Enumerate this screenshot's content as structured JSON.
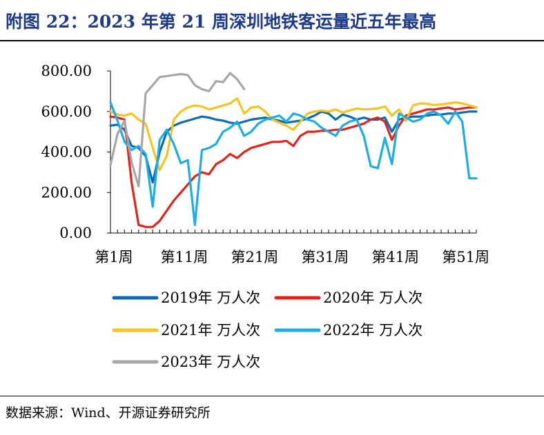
{
  "title": "附图 22：2023 年第 21 周深圳地铁客运量近五年最高",
  "source": "数据来源：Wind、开源证券研究所",
  "chart_data": {
    "type": "line",
    "title": "附图 22：2023 年第 21 周深圳地铁客运量近五年最高",
    "xlabel": "",
    "ylabel": "",
    "ylim": [
      0,
      800
    ],
    "yticks": [
      "0.00",
      "200.00",
      "400.00",
      "600.00",
      "800.00"
    ],
    "xlim": [
      1,
      53
    ],
    "xticks": [
      {
        "week": 1,
        "label": "第1周"
      },
      {
        "week": 11,
        "label": "第11周"
      },
      {
        "week": 21,
        "label": "第21周"
      },
      {
        "week": 31,
        "label": "第31周"
      },
      {
        "week": 41,
        "label": "第41周"
      },
      {
        "week": 51,
        "label": "第51周"
      }
    ],
    "grid": false,
    "legend_position": "bottom",
    "x": [
      1,
      2,
      3,
      4,
      5,
      6,
      7,
      8,
      9,
      10,
      11,
      12,
      13,
      14,
      15,
      16,
      17,
      18,
      19,
      20,
      21,
      22,
      23,
      24,
      25,
      26,
      27,
      28,
      29,
      30,
      31,
      32,
      33,
      34,
      35,
      36,
      37,
      38,
      39,
      40,
      41,
      42,
      43,
      44,
      45,
      46,
      47,
      48,
      49,
      50,
      51,
      52,
      53
    ],
    "series": [
      {
        "name": "2019年 万人次",
        "color": "#0a6bb5",
        "values": [
          530,
          535,
          510,
          430,
          420,
          380,
          250,
          400,
          500,
          530,
          545,
          555,
          565,
          575,
          570,
          560,
          555,
          545,
          540,
          550,
          560,
          565,
          570,
          560,
          555,
          545,
          550,
          555,
          565,
          580,
          600,
          590,
          560,
          585,
          575,
          560,
          570,
          560,
          560,
          570,
          500,
          560,
          570,
          575,
          575,
          580,
          585,
          585,
          590,
          590,
          595,
          600,
          600
        ]
      },
      {
        "name": "2020年 万人次",
        "color": "#e8201a",
        "values": [
          575,
          570,
          560,
          250,
          40,
          30,
          30,
          60,
          110,
          160,
          200,
          240,
          280,
          300,
          290,
          340,
          360,
          390,
          370,
          400,
          420,
          430,
          440,
          450,
          450,
          455,
          430,
          480,
          500,
          500,
          505,
          505,
          510,
          510,
          520,
          530,
          540,
          560,
          570,
          550,
          460,
          530,
          580,
          590,
          600,
          610,
          610,
          615,
          620,
          610,
          615,
          620,
          620
        ]
      },
      {
        "name": "2021年 万人次",
        "color": "#f7c31c",
        "values": [
          600,
          585,
          580,
          590,
          560,
          540,
          420,
          310,
          380,
          560,
          600,
          620,
          630,
          625,
          610,
          620,
          630,
          640,
          665,
          590,
          620,
          625,
          600,
          560,
          545,
          530,
          510,
          550,
          590,
          600,
          605,
          600,
          610,
          595,
          605,
          615,
          610,
          612,
          615,
          625,
          580,
          610,
          555,
          630,
          640,
          638,
          632,
          635,
          640,
          645,
          640,
          630,
          620
        ]
      },
      {
        "name": "2022年 万人次",
        "color": "#1aaee8",
        "values": [
          645,
          555,
          450,
          410,
          430,
          390,
          130,
          460,
          510,
          440,
          345,
          360,
          40,
          410,
          420,
          440,
          500,
          520,
          550,
          480,
          500,
          540,
          560,
          570,
          580,
          550,
          590,
          580,
          560,
          550,
          520,
          500,
          480,
          530,
          550,
          560,
          480,
          330,
          320,
          470,
          340,
          590,
          570,
          550,
          560,
          590,
          600,
          580,
          540,
          600,
          550,
          270,
          270
        ]
      },
      {
        "name": "2023年 万人次",
        "color": "#a6a6a6",
        "values": [
          335,
          490,
          555,
          350,
          230,
          690,
          730,
          770,
          775,
          780,
          785,
          780,
          730,
          710,
          700,
          750,
          745,
          790,
          760,
          710,
          null,
          null,
          null,
          null,
          null,
          null,
          null,
          null,
          null,
          null,
          null,
          null,
          null,
          null,
          null,
          null,
          null,
          null,
          null,
          null,
          null,
          null,
          null,
          null,
          null,
          null,
          null,
          null,
          null,
          null,
          null,
          null,
          null
        ]
      }
    ]
  }
}
